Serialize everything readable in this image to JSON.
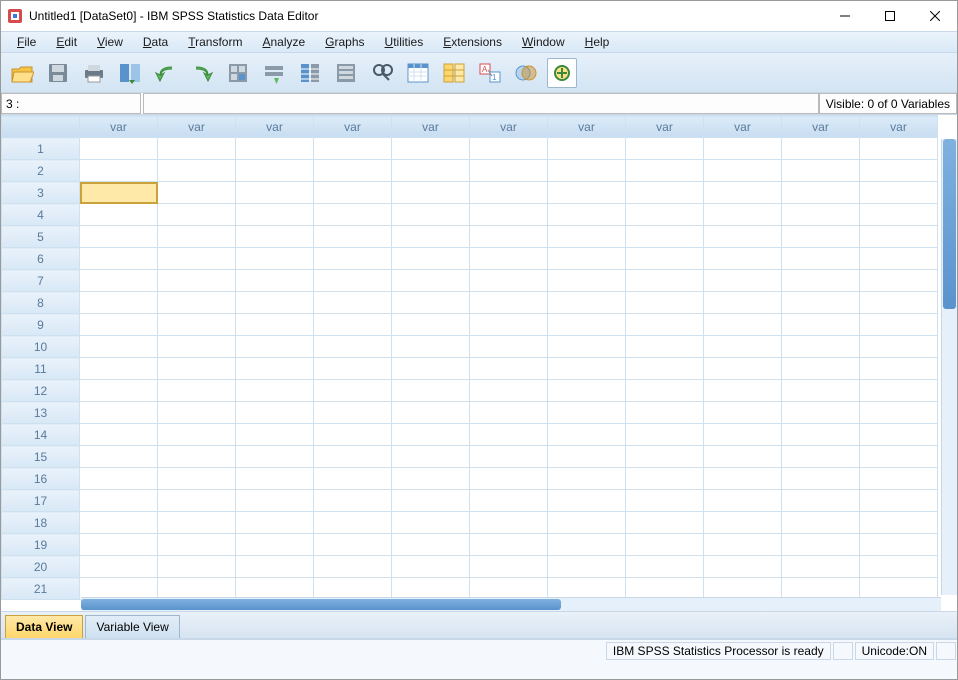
{
  "window": {
    "title": "Untitled1 [DataSet0] - IBM SPSS Statistics Data Editor"
  },
  "menus": [
    "File",
    "Edit",
    "View",
    "Data",
    "Transform",
    "Analyze",
    "Graphs",
    "Utilities",
    "Extensions",
    "Window",
    "Help"
  ],
  "toolbar_icons": [
    "open",
    "save",
    "print",
    "recall",
    "undo",
    "redo",
    "goto-case",
    "goto-var",
    "variables",
    "run",
    "find",
    "select",
    "split",
    "weight",
    "value-labels",
    "use-sets",
    "show-all"
  ],
  "goto": {
    "ref": "3 :",
    "value": "",
    "visible": "Visible: 0 of 0 Variables"
  },
  "grid": {
    "col_header": "var",
    "num_cols": 11,
    "num_rows": 21,
    "selected": {
      "row": 3,
      "col": 1
    }
  },
  "tabs": {
    "data": "Data View",
    "variable": "Variable View",
    "active": "data"
  },
  "status": {
    "processor": "IBM SPSS Statistics Processor is ready",
    "unicode": "Unicode:ON"
  },
  "colors": {
    "header_bg": "#dcebf8",
    "grid_border": "#cfe0ef",
    "selection": "#ffe9a8",
    "scrollbar_thumb": "#5a93cc"
  }
}
